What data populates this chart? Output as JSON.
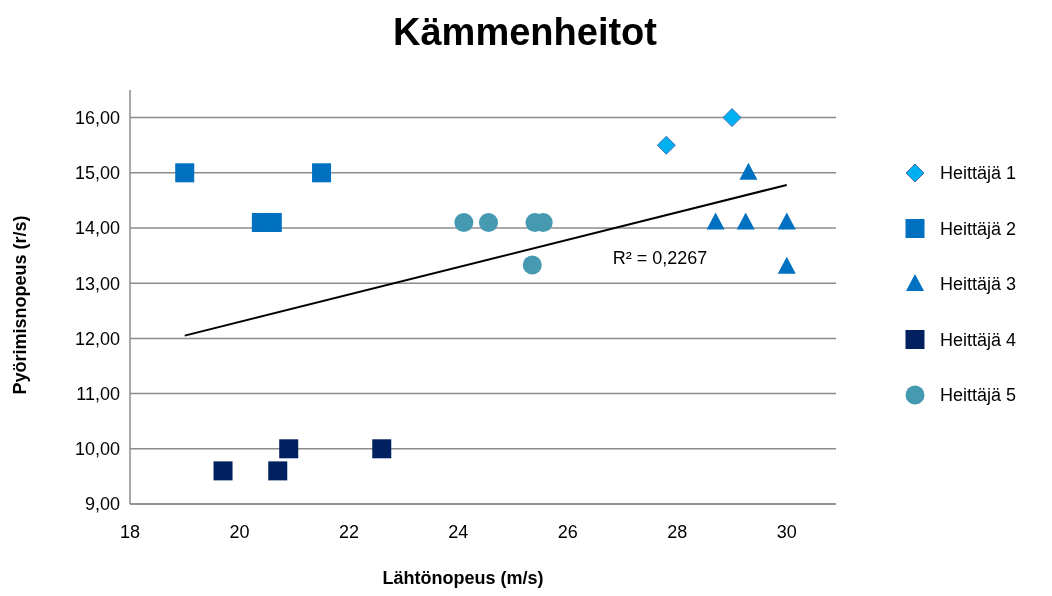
{
  "chart_data": {
    "type": "scatter",
    "title": "Kämmenheitot",
    "xlabel": "Lähtönopeus (m/s)",
    "ylabel": "Pyörimisnopeus (r/s)",
    "xlim": [
      18,
      30.9
    ],
    "xticks": [
      18,
      20,
      22,
      24,
      26,
      28,
      30
    ],
    "ylim": [
      9,
      16.5
    ],
    "yticks": [
      {
        "value": 9,
        "label": "9,00"
      },
      {
        "value": 10,
        "label": "10,00"
      },
      {
        "value": 11,
        "label": "11,00"
      },
      {
        "value": 12,
        "label": "12,00"
      },
      {
        "value": 13,
        "label": "13,00"
      },
      {
        "value": 14,
        "label": "14,00"
      },
      {
        "value": 15,
        "label": "15,00"
      },
      {
        "value": 16,
        "label": "16,00"
      }
    ],
    "grid": "y",
    "legend": "right",
    "series": [
      {
        "name": "Heittäjä 1",
        "color": "#00b0f0",
        "marker": "diamond",
        "x": [
          27.8,
          29.0
        ],
        "values": [
          15.5,
          16.0
        ]
      },
      {
        "name": "Heittäjä 2",
        "color": "#0070c0",
        "marker": "square",
        "x": [
          19.0,
          20.4,
          20.6,
          21.5
        ],
        "values": [
          15.0,
          14.1,
          14.1,
          15.0
        ]
      },
      {
        "name": "Heittäjä 3",
        "color": "#0070c0",
        "marker": "triangle",
        "x": [
          29.3,
          28.7,
          29.25,
          30.0,
          30.0
        ],
        "values": [
          15.0,
          14.1,
          14.1,
          14.1,
          13.3
        ]
      },
      {
        "name": "Heittäjä 4",
        "color": "#002060",
        "marker": "square",
        "x": [
          19.7,
          20.7,
          20.9,
          22.6
        ],
        "values": [
          9.6,
          9.6,
          10.0,
          10.0
        ]
      },
      {
        "name": "Heittäjä 5",
        "color": "#4599b1",
        "marker": "circle",
        "x": [
          24.1,
          24.55,
          25.4,
          25.55,
          25.35
        ],
        "values": [
          14.1,
          14.1,
          14.1,
          14.1,
          13.33
        ]
      },
      {
        "type": "line",
        "color": "#000000",
        "marker": "none",
        "x": [
          19.0,
          30.0
        ],
        "values": [
          12.05,
          14.78
        ]
      }
    ],
    "annotations": [
      "R² = 0,2267"
    ]
  }
}
